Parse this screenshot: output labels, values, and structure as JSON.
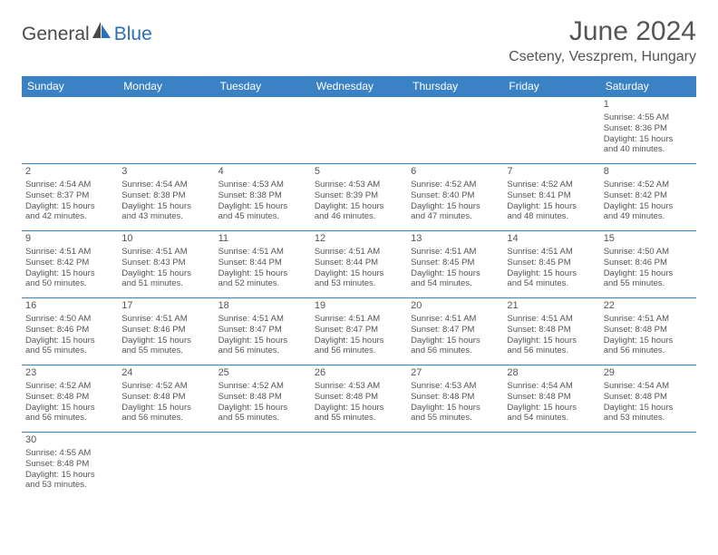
{
  "logo": {
    "general": "General",
    "blue": "Blue"
  },
  "title": "June 2024",
  "location": "Cseteny, Veszprem, Hungary",
  "colors": {
    "header_bg": "#3b82c4",
    "header_text": "#ffffff",
    "border": "#3b82c4",
    "text": "#555555",
    "logo_gray": "#4a4a4a",
    "logo_blue": "#2b6fb5",
    "background": "#ffffff"
  },
  "typography": {
    "title_fontsize": 30,
    "location_fontsize": 16,
    "header_fontsize": 12,
    "cell_fontsize": 9.5,
    "daynum_fontsize": 11
  },
  "headers": [
    "Sunday",
    "Monday",
    "Tuesday",
    "Wednesday",
    "Thursday",
    "Friday",
    "Saturday"
  ],
  "weeks": [
    [
      null,
      null,
      null,
      null,
      null,
      null,
      {
        "n": "1",
        "sr": "Sunrise: 4:55 AM",
        "ss": "Sunset: 8:36 PM",
        "d1": "Daylight: 15 hours",
        "d2": "and 40 minutes."
      }
    ],
    [
      {
        "n": "2",
        "sr": "Sunrise: 4:54 AM",
        "ss": "Sunset: 8:37 PM",
        "d1": "Daylight: 15 hours",
        "d2": "and 42 minutes."
      },
      {
        "n": "3",
        "sr": "Sunrise: 4:54 AM",
        "ss": "Sunset: 8:38 PM",
        "d1": "Daylight: 15 hours",
        "d2": "and 43 minutes."
      },
      {
        "n": "4",
        "sr": "Sunrise: 4:53 AM",
        "ss": "Sunset: 8:38 PM",
        "d1": "Daylight: 15 hours",
        "d2": "and 45 minutes."
      },
      {
        "n": "5",
        "sr": "Sunrise: 4:53 AM",
        "ss": "Sunset: 8:39 PM",
        "d1": "Daylight: 15 hours",
        "d2": "and 46 minutes."
      },
      {
        "n": "6",
        "sr": "Sunrise: 4:52 AM",
        "ss": "Sunset: 8:40 PM",
        "d1": "Daylight: 15 hours",
        "d2": "and 47 minutes."
      },
      {
        "n": "7",
        "sr": "Sunrise: 4:52 AM",
        "ss": "Sunset: 8:41 PM",
        "d1": "Daylight: 15 hours",
        "d2": "and 48 minutes."
      },
      {
        "n": "8",
        "sr": "Sunrise: 4:52 AM",
        "ss": "Sunset: 8:42 PM",
        "d1": "Daylight: 15 hours",
        "d2": "and 49 minutes."
      }
    ],
    [
      {
        "n": "9",
        "sr": "Sunrise: 4:51 AM",
        "ss": "Sunset: 8:42 PM",
        "d1": "Daylight: 15 hours",
        "d2": "and 50 minutes."
      },
      {
        "n": "10",
        "sr": "Sunrise: 4:51 AM",
        "ss": "Sunset: 8:43 PM",
        "d1": "Daylight: 15 hours",
        "d2": "and 51 minutes."
      },
      {
        "n": "11",
        "sr": "Sunrise: 4:51 AM",
        "ss": "Sunset: 8:44 PM",
        "d1": "Daylight: 15 hours",
        "d2": "and 52 minutes."
      },
      {
        "n": "12",
        "sr": "Sunrise: 4:51 AM",
        "ss": "Sunset: 8:44 PM",
        "d1": "Daylight: 15 hours",
        "d2": "and 53 minutes."
      },
      {
        "n": "13",
        "sr": "Sunrise: 4:51 AM",
        "ss": "Sunset: 8:45 PM",
        "d1": "Daylight: 15 hours",
        "d2": "and 54 minutes."
      },
      {
        "n": "14",
        "sr": "Sunrise: 4:51 AM",
        "ss": "Sunset: 8:45 PM",
        "d1": "Daylight: 15 hours",
        "d2": "and 54 minutes."
      },
      {
        "n": "15",
        "sr": "Sunrise: 4:50 AM",
        "ss": "Sunset: 8:46 PM",
        "d1": "Daylight: 15 hours",
        "d2": "and 55 minutes."
      }
    ],
    [
      {
        "n": "16",
        "sr": "Sunrise: 4:50 AM",
        "ss": "Sunset: 8:46 PM",
        "d1": "Daylight: 15 hours",
        "d2": "and 55 minutes."
      },
      {
        "n": "17",
        "sr": "Sunrise: 4:51 AM",
        "ss": "Sunset: 8:46 PM",
        "d1": "Daylight: 15 hours",
        "d2": "and 55 minutes."
      },
      {
        "n": "18",
        "sr": "Sunrise: 4:51 AM",
        "ss": "Sunset: 8:47 PM",
        "d1": "Daylight: 15 hours",
        "d2": "and 56 minutes."
      },
      {
        "n": "19",
        "sr": "Sunrise: 4:51 AM",
        "ss": "Sunset: 8:47 PM",
        "d1": "Daylight: 15 hours",
        "d2": "and 56 minutes."
      },
      {
        "n": "20",
        "sr": "Sunrise: 4:51 AM",
        "ss": "Sunset: 8:47 PM",
        "d1": "Daylight: 15 hours",
        "d2": "and 56 minutes."
      },
      {
        "n": "21",
        "sr": "Sunrise: 4:51 AM",
        "ss": "Sunset: 8:48 PM",
        "d1": "Daylight: 15 hours",
        "d2": "and 56 minutes."
      },
      {
        "n": "22",
        "sr": "Sunrise: 4:51 AM",
        "ss": "Sunset: 8:48 PM",
        "d1": "Daylight: 15 hours",
        "d2": "and 56 minutes."
      }
    ],
    [
      {
        "n": "23",
        "sr": "Sunrise: 4:52 AM",
        "ss": "Sunset: 8:48 PM",
        "d1": "Daylight: 15 hours",
        "d2": "and 56 minutes."
      },
      {
        "n": "24",
        "sr": "Sunrise: 4:52 AM",
        "ss": "Sunset: 8:48 PM",
        "d1": "Daylight: 15 hours",
        "d2": "and 56 minutes."
      },
      {
        "n": "25",
        "sr": "Sunrise: 4:52 AM",
        "ss": "Sunset: 8:48 PM",
        "d1": "Daylight: 15 hours",
        "d2": "and 55 minutes."
      },
      {
        "n": "26",
        "sr": "Sunrise: 4:53 AM",
        "ss": "Sunset: 8:48 PM",
        "d1": "Daylight: 15 hours",
        "d2": "and 55 minutes."
      },
      {
        "n": "27",
        "sr": "Sunrise: 4:53 AM",
        "ss": "Sunset: 8:48 PM",
        "d1": "Daylight: 15 hours",
        "d2": "and 55 minutes."
      },
      {
        "n": "28",
        "sr": "Sunrise: 4:54 AM",
        "ss": "Sunset: 8:48 PM",
        "d1": "Daylight: 15 hours",
        "d2": "and 54 minutes."
      },
      {
        "n": "29",
        "sr": "Sunrise: 4:54 AM",
        "ss": "Sunset: 8:48 PM",
        "d1": "Daylight: 15 hours",
        "d2": "and 53 minutes."
      }
    ],
    [
      {
        "n": "30",
        "sr": "Sunrise: 4:55 AM",
        "ss": "Sunset: 8:48 PM",
        "d1": "Daylight: 15 hours",
        "d2": "and 53 minutes."
      },
      null,
      null,
      null,
      null,
      null,
      null
    ]
  ]
}
